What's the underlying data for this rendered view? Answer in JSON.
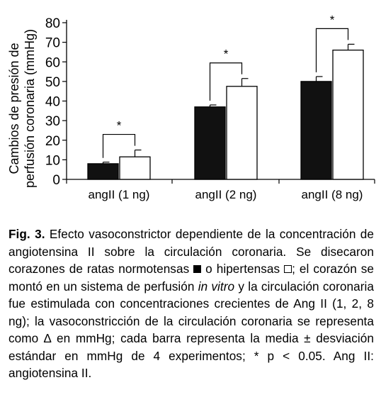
{
  "chart_data": {
    "type": "bar",
    "categories": [
      "angII (1 ng)",
      "angII (2 ng)",
      "angII (8 ng)"
    ],
    "series": [
      {
        "name": "normotensas",
        "color": "#111111",
        "values": [
          8,
          37,
          50
        ],
        "errors": [
          0.8,
          1.0,
          2.5
        ]
      },
      {
        "name": "hipertensas",
        "color": "#ffffff",
        "values": [
          11.5,
          47.5,
          66
        ],
        "errors": [
          3.5,
          4.0,
          3.0
        ]
      }
    ],
    "significance": [
      "*",
      "*",
      "*"
    ],
    "ylabel_line1": "Cambios de presión de",
    "ylabel_line2": "perfusión coronaria (mmHg)",
    "ylim": [
      0,
      80
    ],
    "yticks": [
      0,
      10,
      20,
      30,
      40,
      50,
      60,
      70,
      80
    ],
    "grid": false
  },
  "caption": {
    "figure_label": "Fig. 3.",
    "part1": "Efecto vasoconstrictor dependiente de la concentración de angiotensina II sobre la circulación coronaria. Se disecaron corazones de ratas normotensas",
    "part2": "o hipertensas",
    "part3": "; el corazón se montó en un sistema de perfusión",
    "italic": "in vitro",
    "part4": "y la circulación coronaria fue estimulada con concentraciones crecientes de Ang II (1, 2, 8 ng); la vasoconstricción de la circulación coronaria se representa como ∆ en mmHg; cada barra representa la media ± desviación estándar en mmHg de 4 experimentos; * p < 0.05. Ang II: angiotensina II."
  }
}
